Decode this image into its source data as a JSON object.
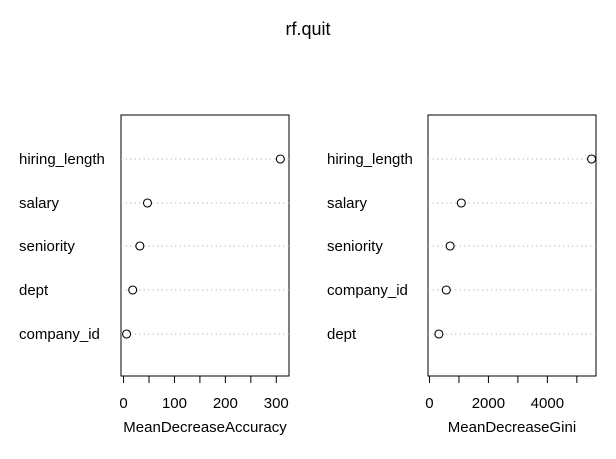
{
  "figure": {
    "title": "rf.quit"
  },
  "chart_data": [
    {
      "type": "scatter",
      "style": "dotchart",
      "title": "",
      "xlabel": "MeanDecreaseAccuracy",
      "ylabel": "",
      "categories": [
        "hiring_length",
        "salary",
        "seniority",
        "dept",
        "company_id"
      ],
      "values": [
        308,
        47,
        32,
        18,
        6
      ],
      "xlim": [
        -5,
        325
      ],
      "xticks": [
        0,
        50,
        100,
        150,
        200,
        250,
        300
      ],
      "xtick_labels": [
        "0",
        "",
        "100",
        "",
        "200",
        "",
        "300"
      ],
      "grid": "dotted horizontal guides per row",
      "legend": "none"
    },
    {
      "type": "scatter",
      "style": "dotchart",
      "title": "",
      "xlabel": "MeanDecreaseGini",
      "ylabel": "",
      "categories": [
        "hiring_length",
        "salary",
        "seniority",
        "company_id",
        "dept"
      ],
      "values": [
        5500,
        1080,
        700,
        570,
        320
      ],
      "xlim": [
        -50,
        5650
      ],
      "xticks": [
        0,
        1000,
        2000,
        3000,
        4000,
        5000
      ],
      "xtick_labels": [
        "0",
        "",
        "2000",
        "",
        "4000",
        ""
      ],
      "grid": "dotted horizontal guides per row",
      "legend": "none"
    }
  ]
}
